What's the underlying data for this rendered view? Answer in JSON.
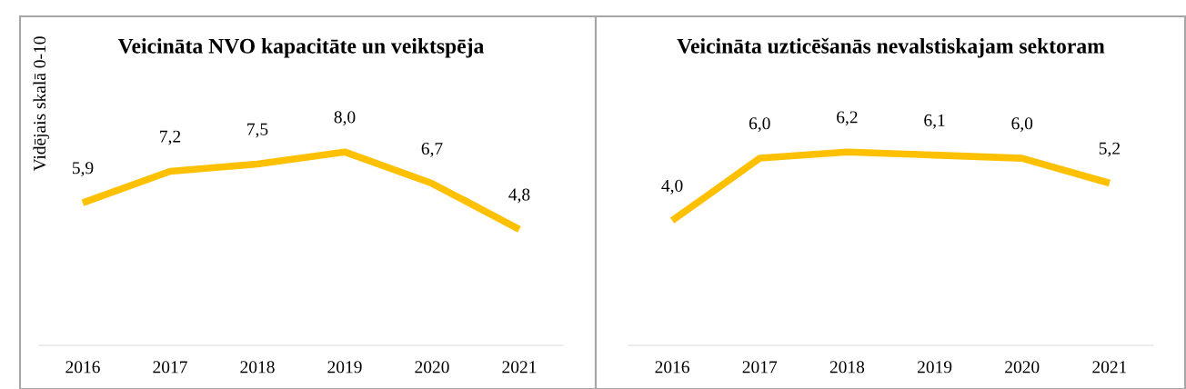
{
  "chart_data": [
    {
      "type": "line",
      "title": "Veicināta NVO kapacitāte un veiktspēja",
      "ylabel": "Vidējais skalā 0-10",
      "categories": [
        "2016",
        "2017",
        "2018",
        "2019",
        "2020",
        "2021"
      ],
      "series": [
        {
          "color": "#ffc000",
          "values": [
            5.9,
            7.2,
            7.5,
            8.0,
            6.7,
            4.8
          ],
          "value_labels": [
            "5,9",
            "7,2",
            "7,5",
            "8,0",
            "6,7",
            "4,8"
          ]
        }
      ],
      "tick_labels": "x",
      "marker": "none",
      "line_style": "solid"
    },
    {
      "type": "line",
      "title": "Veicināta uzticēšanās nevalstiskajam sektoram",
      "categories": [
        "2016",
        "2017",
        "2018",
        "2019",
        "2020",
        "2021"
      ],
      "series": [
        {
          "color": "#ffc000",
          "values": [
            4.0,
            6.0,
            6.2,
            6.1,
            6.0,
            5.2
          ],
          "value_labels": [
            "4,0",
            "6,0",
            "6,2",
            "6,1",
            "6,0",
            "5,2"
          ]
        }
      ],
      "tick_labels": "x",
      "marker": "none",
      "line_style": "solid"
    }
  ]
}
